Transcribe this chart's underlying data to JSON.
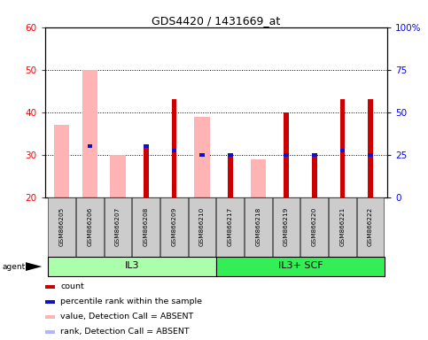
{
  "title": "GDS4420 / 1431669_at",
  "samples": [
    "GSM866205",
    "GSM866206",
    "GSM866207",
    "GSM866208",
    "GSM866209",
    "GSM866210",
    "GSM866217",
    "GSM866218",
    "GSM866219",
    "GSM866220",
    "GSM866221",
    "GSM866222"
  ],
  "red_bars": [
    0,
    0,
    0,
    32,
    43,
    0,
    30,
    0,
    40,
    30,
    43,
    43
  ],
  "blue_bars": [
    0,
    32,
    0,
    32,
    31,
    30,
    30,
    0,
    30,
    30,
    31,
    30
  ],
  "pink_bars": [
    37,
    50,
    30,
    0,
    0,
    39,
    0,
    29,
    0,
    0,
    0,
    0
  ],
  "lightblue_bars": [
    0,
    0,
    0,
    0,
    0,
    0,
    0,
    0,
    0,
    0,
    0,
    0
  ],
  "group1_label": "IL3",
  "group2_label": "IL3+ SCF",
  "group1_indices": [
    0,
    1,
    2,
    3,
    4,
    5
  ],
  "group2_indices": [
    6,
    7,
    8,
    9,
    10,
    11
  ],
  "ylim_left": [
    20,
    60
  ],
  "ylim_right": [
    0,
    100
  ],
  "yticks_left": [
    20,
    30,
    40,
    50,
    60
  ],
  "yticks_right": [
    0,
    25,
    50,
    75,
    100
  ],
  "ytick_labels_right": [
    "0",
    "25",
    "50",
    "75",
    "100%"
  ],
  "red_color": "#cc0000",
  "blue_color": "#1111cc",
  "pink_color": "#ffb3b3",
  "lightblue_color": "#b3b3ff",
  "group1_bg": "#aaffaa",
  "group2_bg": "#33ee55",
  "legend_items": [
    "count",
    "percentile rank within the sample",
    "value, Detection Call = ABSENT",
    "rank, Detection Call = ABSENT"
  ],
  "legend_colors": [
    "#cc0000",
    "#1111cc",
    "#ffb3b3",
    "#b3b3ff"
  ]
}
